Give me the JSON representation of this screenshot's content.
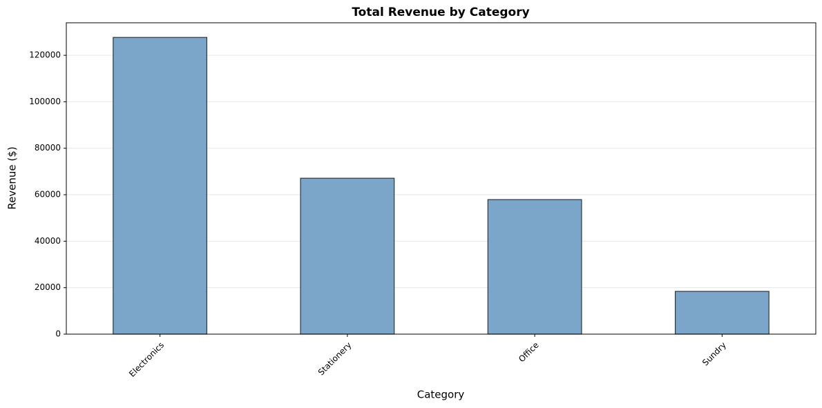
{
  "chart_data": {
    "type": "bar",
    "title": "Total Revenue by Category",
    "x_label": "Category",
    "y_label": "Revenue ($)",
    "categories": [
      "Electronics",
      "Stationery",
      "Office",
      "Sundry"
    ],
    "values": [
      127700,
      67100,
      57900,
      18400
    ],
    "color": "#7ba6ca",
    "edgecolor": "#2b3440",
    "ylim": [
      0,
      134000
    ],
    "yticks": [
      0,
      20000,
      40000,
      60000,
      80000,
      100000,
      120000
    ],
    "grid": true
  }
}
